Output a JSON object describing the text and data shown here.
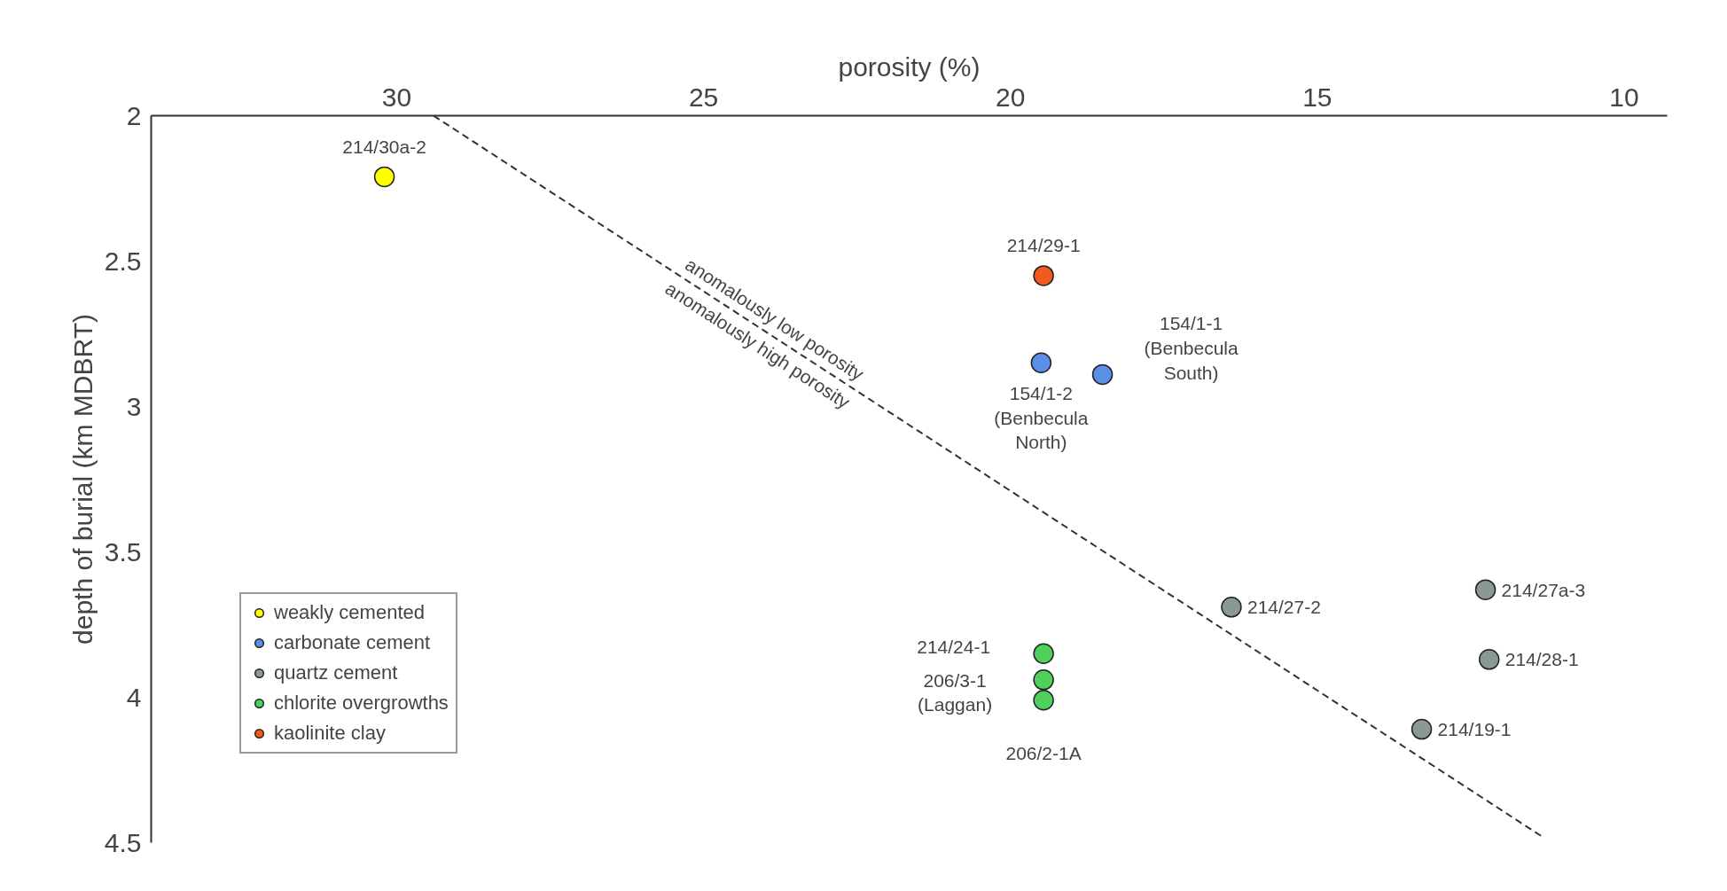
{
  "chart_data": {
    "type": "scatter",
    "xlabel": "porosity (%)",
    "ylabel": "depth of burial (km MDBRT)",
    "xlim": [
      34,
      9.3
    ],
    "ylim": [
      4.5,
      2
    ],
    "xticks": [
      30,
      25,
      20,
      15,
      10
    ],
    "yticks": [
      2,
      2.5,
      3,
      3.5,
      4,
      4.5
    ],
    "grid": false,
    "legend": "bottom left",
    "series": [
      {
        "name": "weakly cemented",
        "marker": "circle",
        "color": "#ffff00",
        "x": [
          30.2
        ],
        "values": [
          2.21
        ]
      },
      {
        "name": "carbonate cement",
        "marker": "circle",
        "color": "#5b8ee6",
        "x": [
          19.5,
          18.5
        ],
        "values": [
          2.85,
          2.89
        ]
      },
      {
        "name": "quartz cement",
        "marker": "circle",
        "color": "#8a9a92",
        "x": [
          16.4,
          12.26,
          12.2,
          13.3
        ],
        "values": [
          3.69,
          3.63,
          3.87,
          4.11
        ]
      },
      {
        "name": "chlorite overgrowths",
        "marker": "circle",
        "color": "#4dd15a",
        "x": [
          19.46,
          19.46,
          19.46
        ],
        "values": [
          3.85,
          3.94,
          4.01
        ]
      },
      {
        "name": "kaolinite clay",
        "marker": "circle",
        "color": "#f05a1e",
        "x": [
          19.46
        ],
        "values": [
          2.55
        ]
      },
      {
        "type": "line",
        "color": "#333333",
        "line_style": "dashed",
        "x": [
          29.4,
          11.33
        ],
        "values": [
          2.0,
          4.48
        ]
      }
    ],
    "annotations": [
      "anomalously low porosity",
      "anomalously high porosity",
      {
        "text": "214/30a-2",
        "x": 30.2,
        "y": 2.21
      },
      {
        "text": "214/29-1",
        "x": 19.46,
        "y": 2.55
      },
      {
        "text": "154/1-2\n(Benbecula\nNorth)",
        "x": 19.5,
        "y": 2.85
      },
      {
        "text": "154/1-1\n(Benbecula\nSouth)",
        "x": 18.5,
        "y": 2.89
      },
      {
        "text": "214/27-2",
        "x": 16.4,
        "y": 3.69
      },
      {
        "text": "214/27a-3",
        "x": 12.26,
        "y": 3.63
      },
      {
        "text": "214/28-1",
        "x": 12.2,
        "y": 3.87
      },
      {
        "text": "214/19-1",
        "x": 13.3,
        "y": 4.11
      },
      {
        "text": "214/24-1",
        "x": 19.46,
        "y": 3.85
      },
      {
        "text": "206/3-1\n(Laggan)",
        "x": 19.46,
        "y": 3.94
      },
      {
        "text": "206/2-1A",
        "x": 19.46,
        "y": 4.01
      }
    ]
  }
}
